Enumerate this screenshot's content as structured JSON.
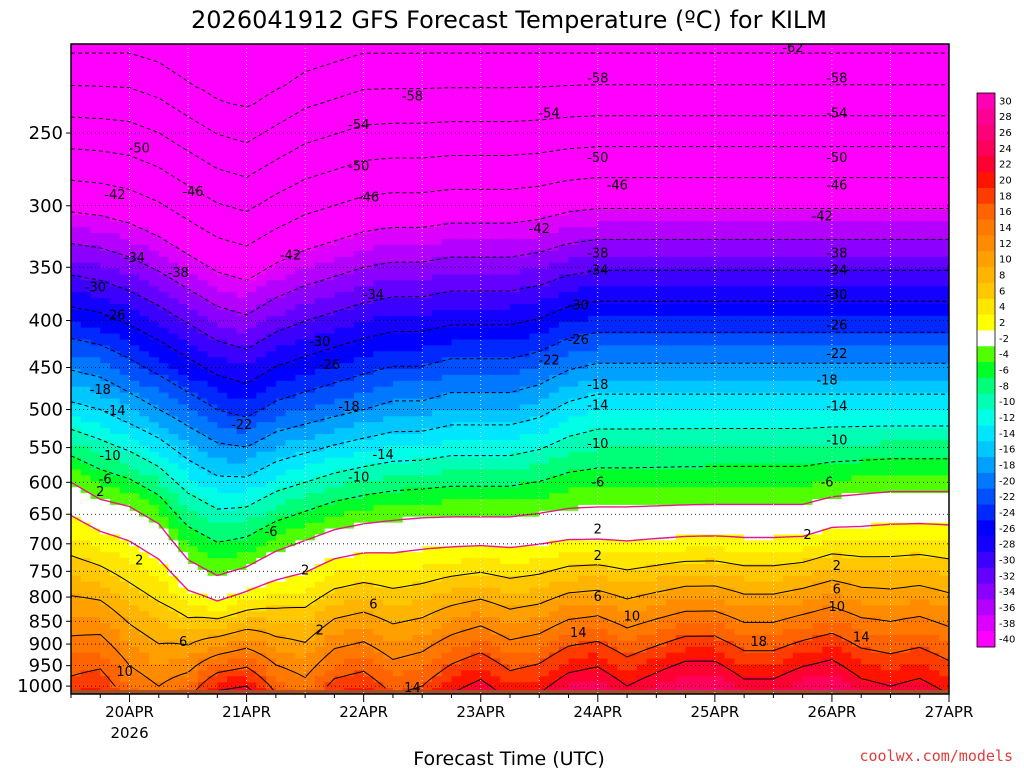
{
  "chart_data": {
    "type": "heatmap",
    "title": "2026041912 GFS Forecast Temperature (ºC) for KILM",
    "xlabel": "Forecast Time (UTC)",
    "ylabel": "",
    "x_ticks": [
      {
        "label": "20APR",
        "sub": "2026",
        "t": 12
      },
      {
        "label": "21APR",
        "sub": "",
        "t": 36
      },
      {
        "label": "22APR",
        "sub": "",
        "t": 60
      },
      {
        "label": "23APR",
        "sub": "",
        "t": 84
      },
      {
        "label": "24APR",
        "sub": "",
        "t": 108
      },
      {
        "label": "25APR",
        "sub": "",
        "t": 132
      },
      {
        "label": "26APR",
        "sub": "",
        "t": 156
      },
      {
        "label": "27APR",
        "sub": "",
        "t": 180
      }
    ],
    "xlim_hours": [
      0,
      180
    ],
    "y_axis": "pressure (hPa), log scale, inverted",
    "y_ticks": [
      250,
      300,
      350,
      400,
      450,
      500,
      550,
      600,
      650,
      700,
      750,
      800,
      850,
      900,
      950,
      1000
    ],
    "ylim_hpa": [
      200,
      1020
    ],
    "grid": "dotted",
    "series": [
      {
        "t": 0,
        "freeze_hpa": 620,
        "t500": -13,
        "t1000": 19,
        "trop_hpa": 205
      },
      {
        "t": 6,
        "freeze_hpa": 650,
        "t500": -14,
        "t1000": 20,
        "trop_hpa": 205
      },
      {
        "t": 12,
        "freeze_hpa": 660,
        "t500": -16,
        "t1000": 16,
        "trop_hpa": 205
      },
      {
        "t": 18,
        "freeze_hpa": 690,
        "t500": -18,
        "t1000": 14,
        "trop_hpa": 210
      },
      {
        "t": 24,
        "freeze_hpa": 760,
        "t500": -20,
        "t1000": 16,
        "trop_hpa": 220
      },
      {
        "t": 30,
        "freeze_hpa": 790,
        "t500": -22,
        "t1000": 21,
        "trop_hpa": 230
      },
      {
        "t": 36,
        "freeze_hpa": 770,
        "t500": -23,
        "t1000": 22,
        "trop_hpa": 235
      },
      {
        "t": 42,
        "freeze_hpa": 740,
        "t500": -21,
        "t1000": 17,
        "trop_hpa": 225
      },
      {
        "t": 48,
        "freeze_hpa": 720,
        "t500": -20,
        "t1000": 15,
        "trop_hpa": 215
      },
      {
        "t": 54,
        "freeze_hpa": 700,
        "t500": -19,
        "t1000": 19,
        "trop_hpa": 210
      },
      {
        "t": 60,
        "freeze_hpa": 690,
        "t500": -18,
        "t1000": 20,
        "trop_hpa": 205
      },
      {
        "t": 66,
        "freeze_hpa": 685,
        "t500": -17,
        "t1000": 17,
        "trop_hpa": 205
      },
      {
        "t": 72,
        "freeze_hpa": 680,
        "t500": -17,
        "t1000": 18,
        "trop_hpa": 205
      },
      {
        "t": 78,
        "freeze_hpa": 680,
        "t500": -16,
        "t1000": 21,
        "trop_hpa": 205
      },
      {
        "t": 84,
        "freeze_hpa": 680,
        "t500": -16,
        "t1000": 23,
        "trop_hpa": 205
      },
      {
        "t": 90,
        "freeze_hpa": 680,
        "t500": -16,
        "t1000": 20,
        "trop_hpa": 205
      },
      {
        "t": 96,
        "freeze_hpa": 675,
        "t500": -15,
        "t1000": 21,
        "trop_hpa": 205
      },
      {
        "t": 102,
        "freeze_hpa": 670,
        "t500": -13,
        "t1000": 24,
        "trop_hpa": 205
      },
      {
        "t": 108,
        "freeze_hpa": 670,
        "t500": -12,
        "t1000": 25,
        "trop_hpa": 205
      },
      {
        "t": 114,
        "freeze_hpa": 670,
        "t500": -12,
        "t1000": 22,
        "trop_hpa": 205
      },
      {
        "t": 120,
        "freeze_hpa": 668,
        "t500": -12,
        "t1000": 24,
        "trop_hpa": 205
      },
      {
        "t": 126,
        "freeze_hpa": 666,
        "t500": -12,
        "t1000": 26,
        "trop_hpa": 205
      },
      {
        "t": 132,
        "freeze_hpa": 665,
        "t500": -12,
        "t1000": 26,
        "trop_hpa": 205
      },
      {
        "t": 138,
        "freeze_hpa": 665,
        "t500": -12,
        "t1000": 23,
        "trop_hpa": 205
      },
      {
        "t": 144,
        "freeze_hpa": 665,
        "t500": -12,
        "t1000": 23,
        "trop_hpa": 205
      },
      {
        "t": 150,
        "freeze_hpa": 665,
        "t500": -12,
        "t1000": 25,
        "trop_hpa": 205
      },
      {
        "t": 156,
        "freeze_hpa": 650,
        "t500": -12,
        "t1000": 26,
        "trop_hpa": 205
      },
      {
        "t": 162,
        "freeze_hpa": 645,
        "t500": -12,
        "t1000": 23,
        "trop_hpa": 205
      },
      {
        "t": 168,
        "freeze_hpa": 640,
        "t500": -12,
        "t1000": 22,
        "trop_hpa": 205
      },
      {
        "t": 174,
        "freeze_hpa": 640,
        "t500": -12,
        "t1000": 23,
        "trop_hpa": 205
      },
      {
        "t": 180,
        "freeze_hpa": 640,
        "t500": -12,
        "t1000": 21,
        "trop_hpa": 205
      }
    ],
    "contour_labels": [
      {
        "text": "-62",
        "t": 148,
        "p": 202
      },
      {
        "text": "-58",
        "t": 70,
        "p": 228
      },
      {
        "text": "-58",
        "t": 108,
        "p": 218
      },
      {
        "text": "-58",
        "t": 157,
        "p": 218
      },
      {
        "text": "-54",
        "t": 59,
        "p": 245
      },
      {
        "text": "-54",
        "t": 98,
        "p": 238
      },
      {
        "text": "-54",
        "t": 157,
        "p": 238
      },
      {
        "text": "-50",
        "t": 14,
        "p": 260
      },
      {
        "text": "-50",
        "t": 59,
        "p": 272
      },
      {
        "text": "-50",
        "t": 108,
        "p": 266
      },
      {
        "text": "-50",
        "t": 157,
        "p": 266
      },
      {
        "text": "-46",
        "t": 25,
        "p": 290
      },
      {
        "text": "-46",
        "t": 61,
        "p": 294
      },
      {
        "text": "-46",
        "t": 112,
        "p": 285
      },
      {
        "text": "-46",
        "t": 157,
        "p": 285
      },
      {
        "text": "-42",
        "t": 9,
        "p": 292
      },
      {
        "text": "-42",
        "t": 45,
        "p": 340
      },
      {
        "text": "-42",
        "t": 96,
        "p": 318
      },
      {
        "text": "-42",
        "t": 154,
        "p": 308
      },
      {
        "text": "-38",
        "t": 22,
        "p": 355
      },
      {
        "text": "-38",
        "t": 108,
        "p": 338
      },
      {
        "text": "-38",
        "t": 157,
        "p": 338
      },
      {
        "text": "-34",
        "t": 13,
        "p": 342
      },
      {
        "text": "-34",
        "t": 62,
        "p": 375
      },
      {
        "text": "-34",
        "t": 108,
        "p": 353
      },
      {
        "text": "-34",
        "t": 157,
        "p": 353
      },
      {
        "text": "-30",
        "t": 5,
        "p": 368
      },
      {
        "text": "-30",
        "t": 51,
        "p": 422
      },
      {
        "text": "-30",
        "t": 104,
        "p": 385
      },
      {
        "text": "-30",
        "t": 157,
        "p": 375
      },
      {
        "text": "-26",
        "t": 9,
        "p": 395
      },
      {
        "text": "-26",
        "t": 53,
        "p": 447
      },
      {
        "text": "-26",
        "t": 104,
        "p": 420
      },
      {
        "text": "-26",
        "t": 157,
        "p": 405
      },
      {
        "text": "-22",
        "t": 35,
        "p": 520
      },
      {
        "text": "-22",
        "t": 98,
        "p": 442
      },
      {
        "text": "-22",
        "t": 157,
        "p": 435
      },
      {
        "text": "-18",
        "t": 6,
        "p": 476
      },
      {
        "text": "-18",
        "t": 57,
        "p": 497
      },
      {
        "text": "-18",
        "t": 108,
        "p": 470
      },
      {
        "text": "-18",
        "t": 155,
        "p": 465
      },
      {
        "text": "-14",
        "t": 9,
        "p": 502
      },
      {
        "text": "-14",
        "t": 64,
        "p": 560
      },
      {
        "text": "-14",
        "t": 108,
        "p": 495
      },
      {
        "text": "-14",
        "t": 157,
        "p": 496
      },
      {
        "text": "-10",
        "t": 8,
        "p": 562
      },
      {
        "text": "-10",
        "t": 59,
        "p": 593
      },
      {
        "text": "-10",
        "t": 108,
        "p": 545
      },
      {
        "text": "-10",
        "t": 157,
        "p": 540
      },
      {
        "text": "-6",
        "t": 7,
        "p": 596
      },
      {
        "text": "-6",
        "t": 41,
        "p": 680
      },
      {
        "text": "-6",
        "t": 108,
        "p": 600
      },
      {
        "text": "-6",
        "t": 155,
        "p": 600
      },
      {
        "text": "2",
        "t": 6,
        "p": 615
      },
      {
        "text": "2",
        "t": 14,
        "p": 730
      },
      {
        "text": "2",
        "t": 48,
        "p": 748
      },
      {
        "text": "2",
        "t": 108,
        "p": 675
      },
      {
        "text": "2",
        "t": 108,
        "p": 722
      },
      {
        "text": "2",
        "t": 151,
        "p": 685
      },
      {
        "text": "2",
        "t": 157,
        "p": 740
      },
      {
        "text": "2",
        "t": 51,
        "p": 870
      },
      {
        "text": "6",
        "t": 62,
        "p": 815
      },
      {
        "text": "6",
        "t": 23,
        "p": 895
      },
      {
        "text": "6",
        "t": 108,
        "p": 800
      },
      {
        "text": "6",
        "t": 157,
        "p": 785
      },
      {
        "text": "10",
        "t": 115,
        "p": 840
      },
      {
        "text": "10",
        "t": 157,
        "p": 820
      },
      {
        "text": "10",
        "t": 11,
        "p": 965
      },
      {
        "text": "14",
        "t": 104,
        "p": 875
      },
      {
        "text": "14",
        "t": 162,
        "p": 885
      },
      {
        "text": "14",
        "t": 70,
        "p": 1005
      },
      {
        "text": "18",
        "t": 141,
        "p": 895
      }
    ],
    "colorbar": {
      "ticks": [
        30,
        28,
        26,
        24,
        22,
        20,
        18,
        16,
        14,
        12,
        10,
        8,
        6,
        4,
        2,
        -2,
        -4,
        -6,
        -8,
        -10,
        -12,
        -14,
        -16,
        -18,
        -20,
        -22,
        -24,
        -26,
        -28,
        -30,
        -32,
        -34,
        -36,
        -38,
        -40
      ],
      "colors": [
        "#ff00b4",
        "#ff0096",
        "#ff0078",
        "#ff005a",
        "#ff0032",
        "#ff1400",
        "#ff3c00",
        "#ff6400",
        "#ff7800",
        "#ff8c00",
        "#ffa000",
        "#ffb400",
        "#ffc800",
        "#ffe600",
        "#ffff00",
        "#ffffff",
        "#50ff00",
        "#00ff28",
        "#00ff78",
        "#00ffb4",
        "#00ffe6",
        "#00e6ff",
        "#00c8ff",
        "#00a0ff",
        "#0078ff",
        "#0050ff",
        "#0028ff",
        "#0000ff",
        "#1400ff",
        "#3c00ff",
        "#6400ff",
        "#8c00ff",
        "#b400ff",
        "#dc00ff",
        "#ff00ff"
      ]
    },
    "colors": {
      "ground": "#a0522d",
      "freezing_line": "#e6198c",
      "contour": "#000000"
    }
  },
  "credit": "coolwx.com/models"
}
